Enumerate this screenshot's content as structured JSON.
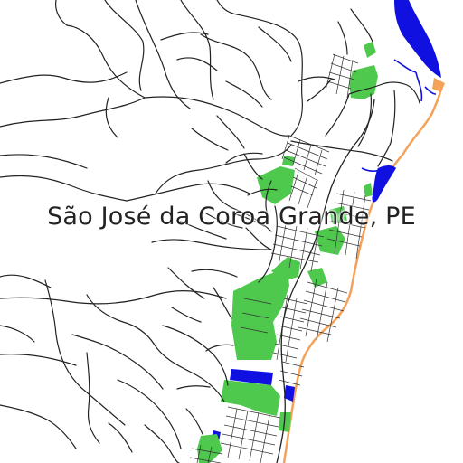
{
  "map": {
    "title": "São José da Coroa Grande, PE",
    "colors": {
      "background": "#ffffff",
      "roads": "#222222",
      "green_areas": "#4ec94e",
      "water": "#1010e0",
      "beach": "#f4a259"
    }
  }
}
